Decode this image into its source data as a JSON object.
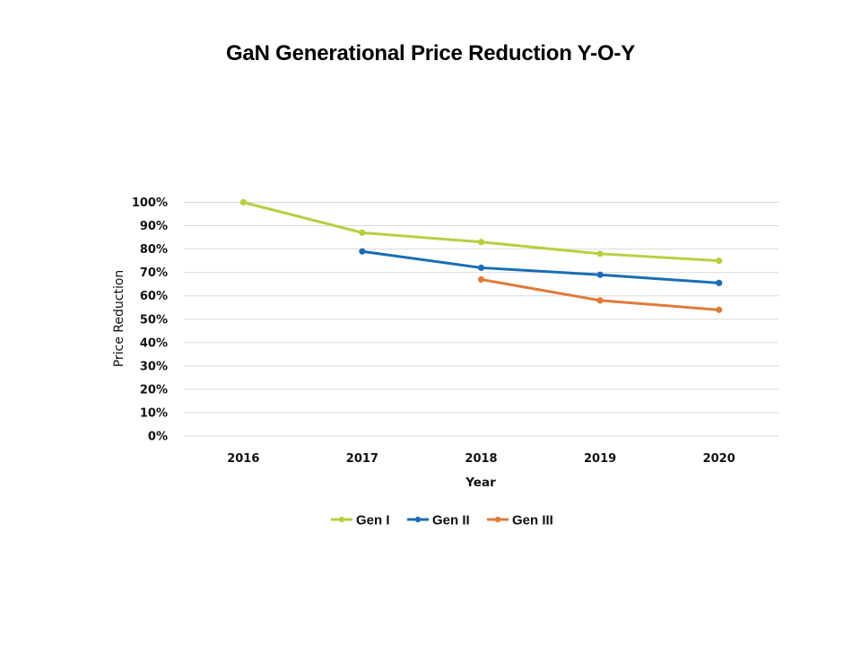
{
  "chart_data": {
    "type": "line",
    "title": "GaN Generational Price Reduction Y-O-Y",
    "xlabel": "Year",
    "ylabel": "Price Reduction",
    "categories": [
      "2016",
      "2017",
      "2018",
      "2019",
      "2020"
    ],
    "ylim": [
      0,
      100
    ],
    "yticks": [
      0,
      10,
      20,
      30,
      40,
      50,
      60,
      70,
      80,
      90,
      100
    ],
    "ytick_labels": [
      "0%",
      "10%",
      "20%",
      "30%",
      "40%",
      "50%",
      "60%",
      "70%",
      "80%",
      "90%",
      "100%"
    ],
    "grid": true,
    "legend_position": "bottom",
    "series": [
      {
        "name": "Gen I",
        "color": "#B5D03F",
        "values": [
          100,
          87,
          83,
          78,
          75
        ]
      },
      {
        "name": "Gen II",
        "color": "#1A6DB5",
        "values": [
          null,
          79,
          72,
          69,
          65.5
        ]
      },
      {
        "name": "Gen III",
        "color": "#E07B39",
        "values": [
          null,
          null,
          67,
          58,
          54
        ]
      }
    ]
  }
}
